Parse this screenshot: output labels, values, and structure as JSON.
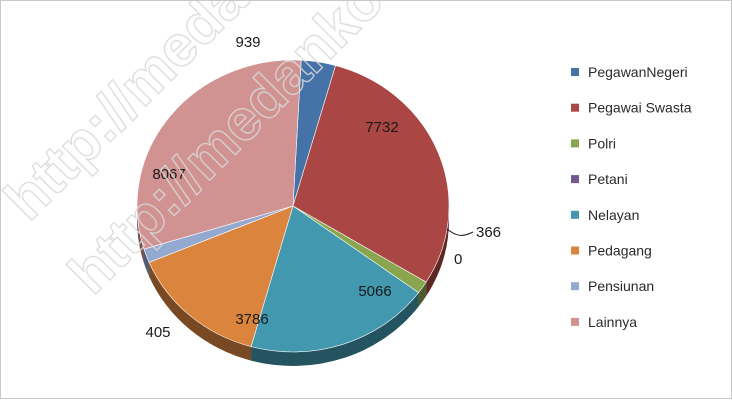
{
  "watermark": "http://medankota.bps.go.id",
  "chart_data": {
    "type": "pie",
    "title": "",
    "legend_position": "right",
    "categories": [
      "PegawanNegeri",
      "Pegawai Swasta",
      "Polri",
      "Petani",
      "Nelayan",
      "Pedagang",
      "Pensiunan",
      "Lainnya"
    ],
    "values": [
      939,
      7732,
      366,
      0,
      5066,
      3786,
      405,
      8067
    ],
    "colors": [
      "#4572a7",
      "#aa4643",
      "#89a54e",
      "#71588f",
      "#4198af",
      "#db843d",
      "#93a9cf",
      "#d19392"
    ],
    "data_labels": [
      "939",
      "7732",
      "366",
      "0",
      "5066",
      "3786",
      "405",
      "8067"
    ]
  }
}
